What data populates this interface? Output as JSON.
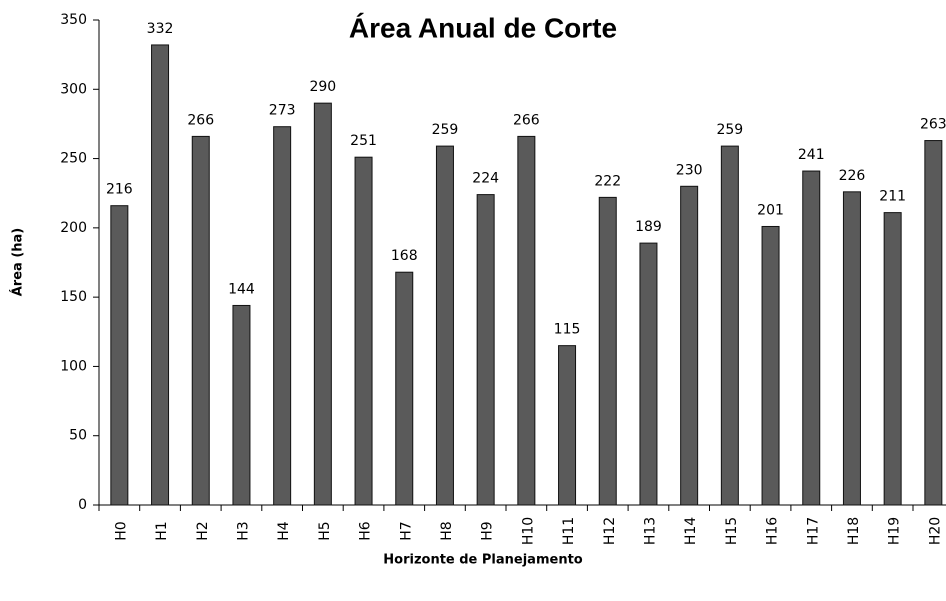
{
  "chart_data": {
    "type": "bar",
    "title": "Área Anual de Corte",
    "x_label": "Horizonte de Planejamento",
    "y_label": "Área (ha)",
    "categories": [
      "H0",
      "H1",
      "H2",
      "H3",
      "H4",
      "H5",
      "H6",
      "H7",
      "H8",
      "H9",
      "H10",
      "H11",
      "H12",
      "H13",
      "H14",
      "H15",
      "H16",
      "H17",
      "H18",
      "H19",
      "H20"
    ],
    "values": [
      216,
      332,
      266,
      144,
      273,
      290,
      251,
      168,
      259,
      224,
      266,
      115,
      222,
      189,
      230,
      259,
      201,
      241,
      226,
      211,
      263
    ],
    "color": "#5a5a5a",
    "ylim": [
      0,
      350
    ],
    "yticks": [
      0,
      50,
      100,
      150,
      200,
      250,
      300,
      350
    ],
    "grid": false
  }
}
